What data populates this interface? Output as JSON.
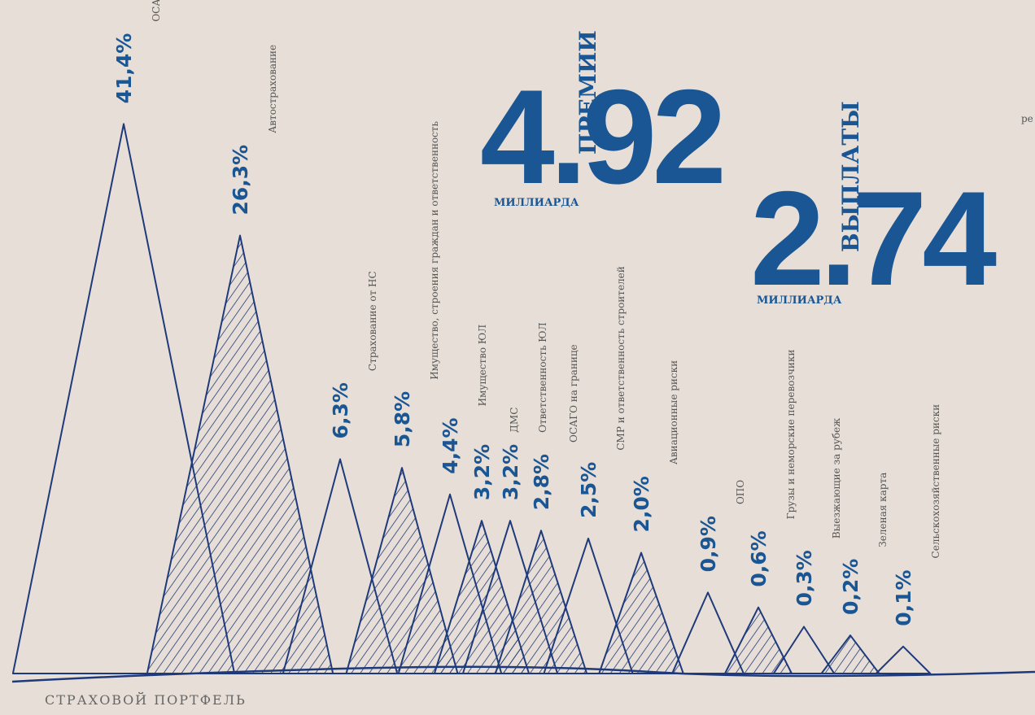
{
  "chart_data": {
    "type": "peaks",
    "title": "СТРАХОВОЙ ПОРТФЕЛЬ",
    "color": "#1f3a7a",
    "label_color": "#1a5694",
    "categories": [
      "ОСАГО",
      "Автострахование",
      "Страхование от НС",
      "Имущество, строения граждан и ответственность",
      "Имущество ЮЛ",
      "ДМС",
      "Ответственность ЮЛ",
      "ОСАГО на границе",
      "СМР и ответственность строителей",
      "Авиационные риски",
      "ОПО",
      "Грузы и неморские перевозчики",
      "Выезжающие за рубеж",
      "Зеленая карта",
      "Сельскохозяйственные риски"
    ],
    "values": [
      41.4,
      26.3,
      6.3,
      5.8,
      4.4,
      3.2,
      3.2,
      2.8,
      2.5,
      2.0,
      0.9,
      0.6,
      0.3,
      0.2,
      0.1
    ],
    "value_labels": [
      "41,4%",
      "26,3%",
      "6,3%",
      "5,8%",
      "4,4%",
      "3,2%",
      "3,2%",
      "2,8%",
      "2,5%",
      "2,0%",
      "0,9%",
      "0,6%",
      "0,3%",
      "0,2%",
      "0,1%"
    ],
    "highlights": [
      {
        "value_text": "4.92",
        "label": "ПРЕМИИ",
        "unit": "МИЛЛИАРДА"
      },
      {
        "value_text": "2.74",
        "label": "ВЫПЛАТЫ",
        "unit": "МИЛЛИАРДА"
      }
    ],
    "edge_text": "ре"
  }
}
